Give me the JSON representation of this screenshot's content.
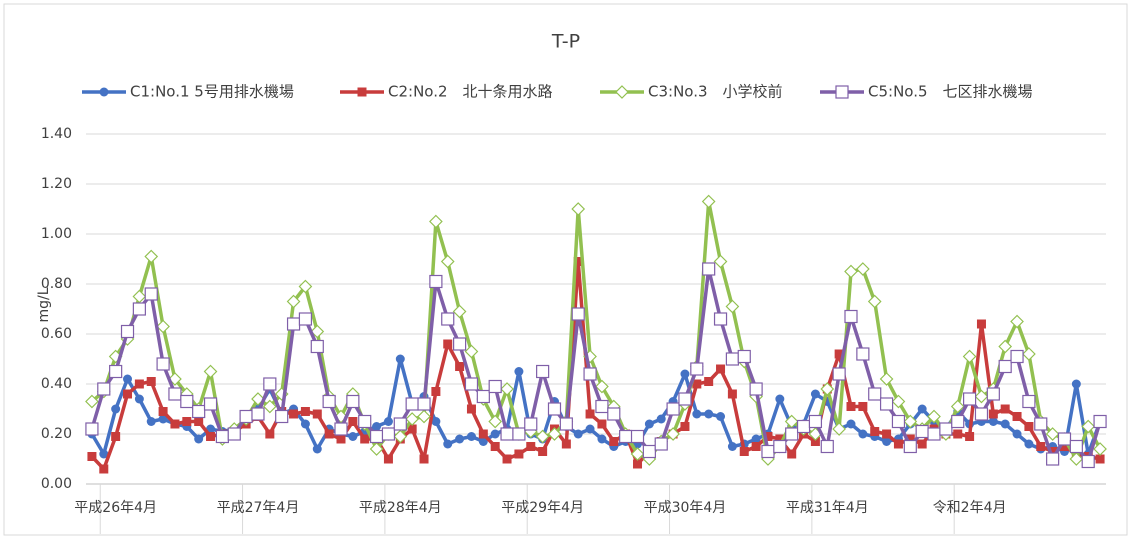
{
  "chart_data": {
    "type": "line",
    "title": "T-P",
    "y_label": "mg/L",
    "categories": [
      null,
      null,
      "平成26年4月",
      null,
      null,
      null,
      null,
      null,
      null,
      null,
      null,
      null,
      null,
      null,
      "平成27年4月",
      null,
      null,
      null,
      null,
      null,
      null,
      null,
      null,
      null,
      null,
      null,
      "平成28年4月",
      null,
      null,
      null,
      null,
      null,
      null,
      null,
      null,
      null,
      null,
      null,
      "平成29年4月",
      null,
      null,
      null,
      null,
      null,
      null,
      null,
      null,
      null,
      null,
      null,
      "平成30年4月",
      null,
      null,
      null,
      null,
      null,
      null,
      null,
      null,
      null,
      null,
      null,
      "平成31年4月",
      null,
      null,
      null,
      null,
      null,
      null,
      null,
      null,
      null,
      null,
      null,
      "令和2年4月",
      null,
      null,
      null,
      null,
      null,
      null,
      null,
      null,
      null,
      null,
      null
    ],
    "series": [
      {
        "name": "C1:No.1 5号用排水機場",
        "color": "#4472c4",
        "marker": "circle",
        "values": [
          0.2,
          0.12,
          0.3,
          0.42,
          0.34,
          0.25,
          0.26,
          0.24,
          0.23,
          0.18,
          0.22,
          0.21,
          0.22,
          0.25,
          0.3,
          0.38,
          0.28,
          0.3,
          0.24,
          0.14,
          0.22,
          0.2,
          0.19,
          0.21,
          0.23,
          0.25,
          0.5,
          0.32,
          0.35,
          0.25,
          0.16,
          0.18,
          0.19,
          0.17,
          0.2,
          0.22,
          0.45,
          0.2,
          0.18,
          0.33,
          0.23,
          0.2,
          0.22,
          0.18,
          0.15,
          0.17,
          0.16,
          0.24,
          0.26,
          0.33,
          0.44,
          0.28,
          0.28,
          0.27,
          0.15,
          0.16,
          0.18,
          0.2,
          0.34,
          0.23,
          0.24,
          0.36,
          0.33,
          0.22,
          0.24,
          0.2,
          0.19,
          0.17,
          0.18,
          0.24,
          0.3,
          0.25,
          0.22,
          0.29,
          0.24,
          0.25,
          0.25,
          0.24,
          0.2,
          0.16,
          0.14,
          0.15,
          0.13,
          0.4,
          0.12,
          0.25
        ]
      },
      {
        "name": "C2:No.2　北十条用水路",
        "color": "#c83c3c",
        "marker": "square",
        "values": [
          0.11,
          0.06,
          0.19,
          0.36,
          0.4,
          0.41,
          0.29,
          0.24,
          0.25,
          0.25,
          0.19,
          0.2,
          0.21,
          0.24,
          0.27,
          0.2,
          0.29,
          0.28,
          0.29,
          0.28,
          0.2,
          0.18,
          0.25,
          0.18,
          0.18,
          0.1,
          0.18,
          0.22,
          0.1,
          0.37,
          0.56,
          0.47,
          0.3,
          0.2,
          0.15,
          0.1,
          0.12,
          0.15,
          0.13,
          0.22,
          0.16,
          0.89,
          0.28,
          0.24,
          0.17,
          0.2,
          0.08,
          0.13,
          0.17,
          0.2,
          0.23,
          0.4,
          0.41,
          0.46,
          0.36,
          0.13,
          0.15,
          0.19,
          0.18,
          0.12,
          0.2,
          0.17,
          0.38,
          0.52,
          0.31,
          0.31,
          0.21,
          0.2,
          0.16,
          0.18,
          0.16,
          0.22,
          0.2,
          0.2,
          0.19,
          0.64,
          0.28,
          0.3,
          0.27,
          0.23,
          0.15,
          0.13,
          0.15,
          0.12,
          0.11,
          0.1
        ]
      },
      {
        "name": "C3:No.3　小学校前",
        "color": "#92c050",
        "marker": "diamond",
        "values": [
          0.33,
          0.37,
          0.51,
          0.58,
          0.75,
          0.91,
          0.63,
          0.42,
          0.36,
          0.3,
          0.45,
          0.18,
          0.22,
          0.26,
          0.34,
          0.31,
          0.36,
          0.73,
          0.79,
          0.61,
          0.35,
          0.27,
          0.36,
          0.24,
          0.14,
          0.2,
          0.19,
          0.26,
          0.27,
          1.05,
          0.89,
          0.69,
          0.53,
          0.34,
          0.25,
          0.38,
          0.2,
          0.21,
          0.19,
          0.2,
          0.25,
          1.1,
          0.51,
          0.39,
          0.31,
          0.2,
          0.12,
          0.1,
          0.17,
          0.2,
          0.32,
          0.47,
          1.13,
          0.89,
          0.71,
          0.49,
          0.35,
          0.1,
          0.15,
          0.25,
          0.22,
          0.2,
          0.38,
          0.22,
          0.85,
          0.86,
          0.73,
          0.42,
          0.33,
          0.25,
          0.22,
          0.27,
          0.2,
          0.31,
          0.51,
          0.35,
          0.38,
          0.55,
          0.65,
          0.52,
          0.25,
          0.2,
          0.18,
          0.1,
          0.23,
          0.14
        ]
      },
      {
        "name": "C5:No.5　七区排水機場",
        "color": "#7f5fa8",
        "marker": "square-open",
        "values": [
          0.22,
          0.38,
          0.45,
          0.61,
          0.7,
          0.76,
          0.48,
          0.36,
          0.33,
          0.29,
          0.32,
          0.19,
          0.2,
          0.27,
          0.28,
          0.4,
          0.27,
          0.64,
          0.66,
          0.55,
          0.33,
          0.22,
          0.33,
          0.25,
          0.19,
          0.2,
          0.24,
          0.32,
          0.32,
          0.81,
          0.66,
          0.56,
          0.4,
          0.35,
          0.39,
          0.2,
          0.2,
          0.24,
          0.45,
          0.3,
          0.24,
          0.68,
          0.44,
          0.31,
          0.28,
          0.19,
          0.19,
          0.13,
          0.16,
          0.3,
          0.34,
          0.46,
          0.86,
          0.66,
          0.5,
          0.51,
          0.38,
          0.13,
          0.15,
          0.2,
          0.23,
          0.25,
          0.15,
          0.44,
          0.67,
          0.52,
          0.36,
          0.32,
          0.25,
          0.15,
          0.21,
          0.2,
          0.22,
          0.25,
          0.34,
          0.28,
          0.36,
          0.47,
          0.51,
          0.33,
          0.24,
          0.1,
          0.18,
          0.15,
          0.09,
          0.25
        ]
      }
    ],
    "ylim": [
      0,
      1.4
    ],
    "yticks": [
      {
        "value": 0,
        "label": "0.00"
      },
      {
        "value": 0.2,
        "label": "0.20"
      },
      {
        "value": 0.4,
        "label": "0.40"
      },
      {
        "value": 0.6,
        "label": "0.60"
      },
      {
        "value": 0.8,
        "label": "0.80"
      },
      {
        "value": 1.0,
        "label": "1.00"
      },
      {
        "value": 1.2,
        "label": "1.20"
      },
      {
        "value": 1.4,
        "label": "1.40"
      }
    ],
    "grid": true,
    "legend": "top"
  }
}
